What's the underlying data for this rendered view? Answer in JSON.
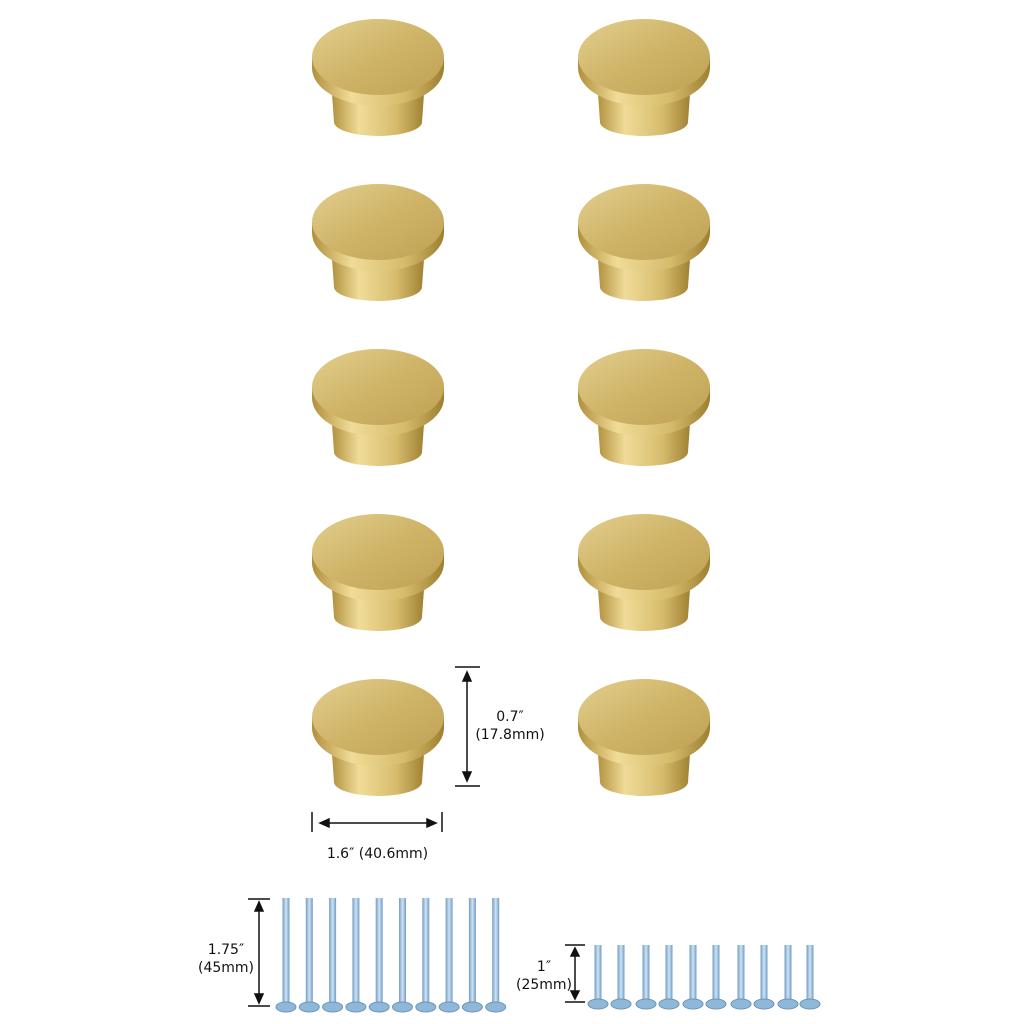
{
  "product": {
    "knob_count": 10,
    "knob_color": "#c9ad5c",
    "screw_color": "#8fb8d8"
  },
  "dimensions": {
    "knob_height_in": "0.7″",
    "knob_height_mm": "(17.8mm)",
    "knob_diameter": "1.6″  (40.6mm)",
    "long_screw_in": "1.75″",
    "long_screw_mm": "(45mm)",
    "short_screw_in": "1″",
    "short_screw_mm": "(25mm)"
  },
  "screws": {
    "long_count": 10,
    "short_count": 10
  }
}
